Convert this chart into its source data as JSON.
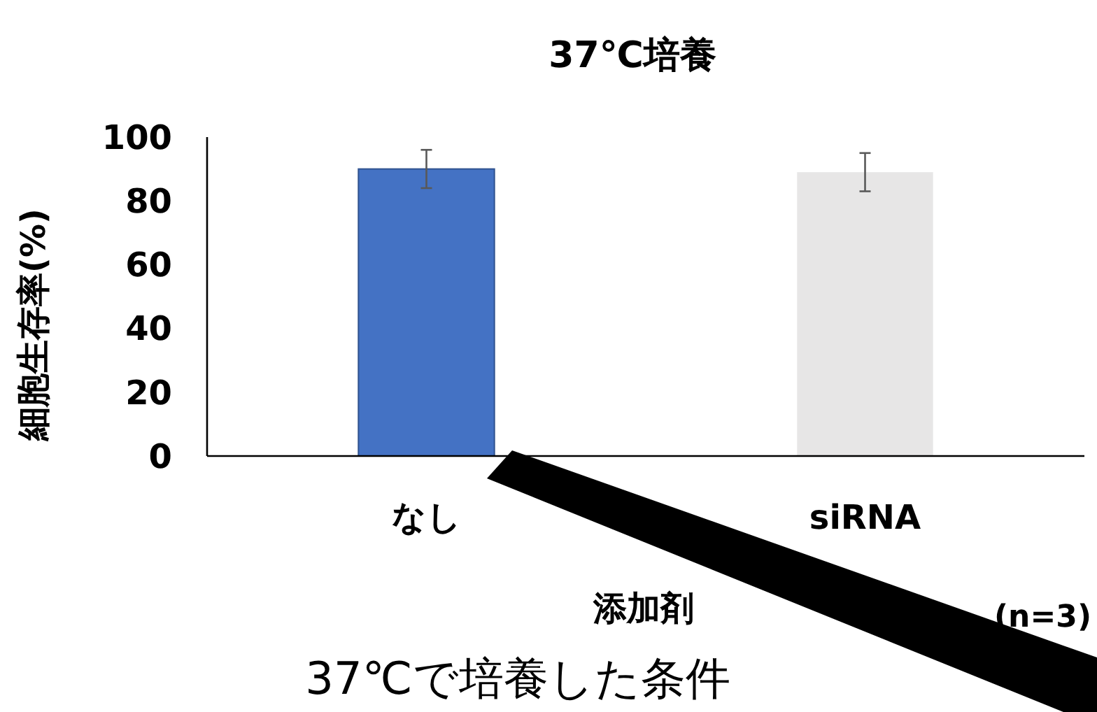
{
  "chart_data": {
    "type": "bar",
    "title": "37℃培養",
    "xlabel": "添加剤",
    "ylabel": "細胞生存率(%)",
    "categories": [
      "なし",
      "siRNA"
    ],
    "values": [
      90,
      89
    ],
    "colors": [
      "#4472c4",
      "#e7e6e6"
    ],
    "errors": [
      6,
      6
    ],
    "ylim": [
      0,
      100
    ],
    "yticks": [
      0,
      20,
      40,
      60,
      80,
      100
    ],
    "grid": false,
    "annotations": [
      "(n=3)",
      "37℃で培養した条件"
    ]
  }
}
